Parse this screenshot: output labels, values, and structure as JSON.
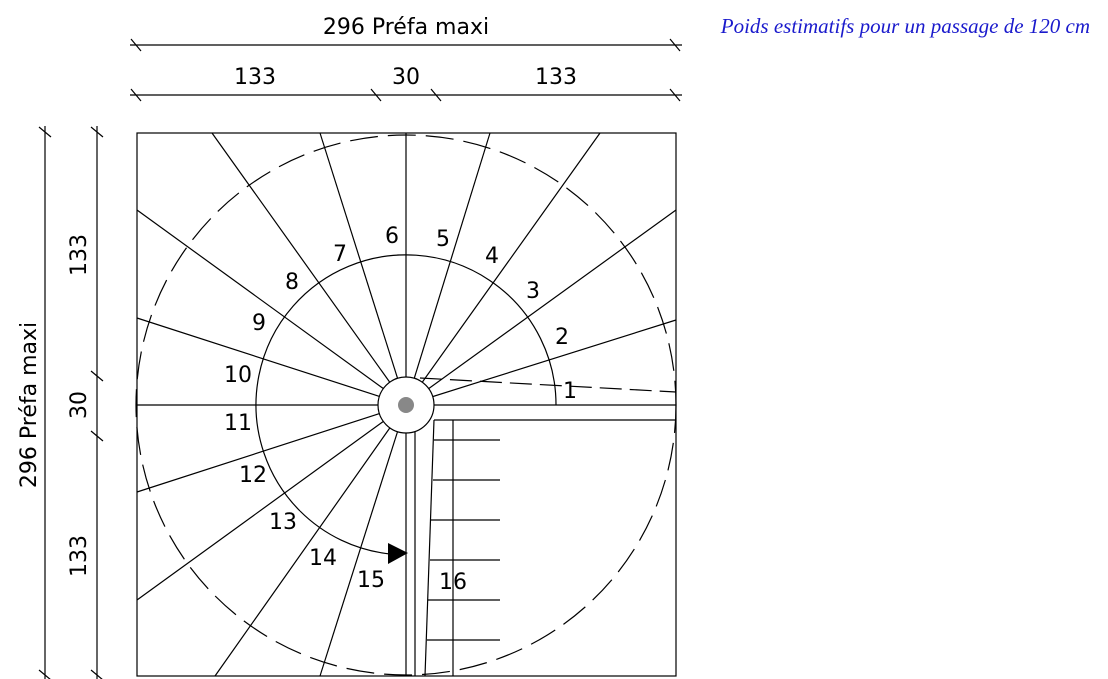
{
  "note": "Poids estimatifs pour un passage de 120 cm",
  "dimensions": {
    "top": {
      "total": "296 Préfa maxi",
      "parts": [
        "133",
        "30",
        "133"
      ]
    },
    "left": {
      "total": "296 Préfa maxi",
      "parts": [
        "133",
        "30",
        "133"
      ]
    }
  },
  "steps": [
    "1",
    "2",
    "3",
    "4",
    "5",
    "6",
    "7",
    "8",
    "9",
    "10",
    "11",
    "12",
    "13",
    "14",
    "15",
    "16"
  ]
}
